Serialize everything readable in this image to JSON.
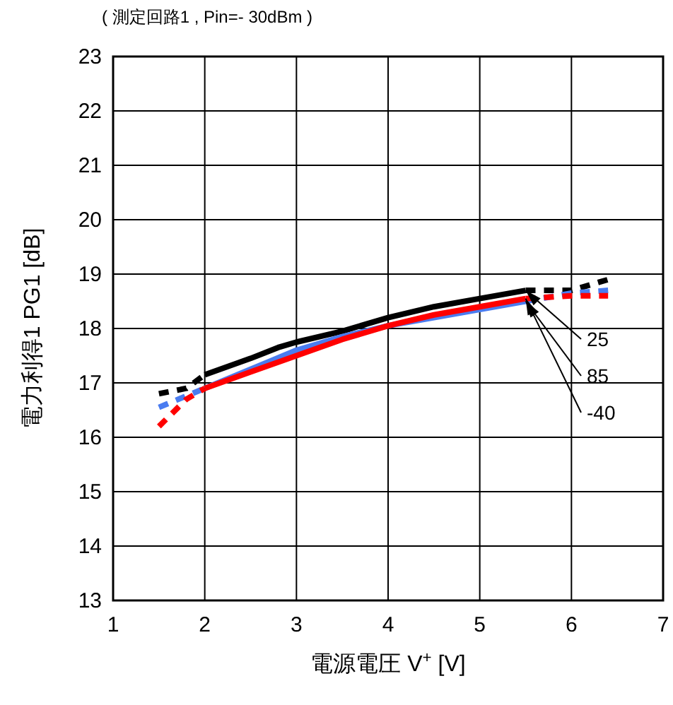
{
  "chart_data": {
    "type": "line",
    "title": "( 測定回路1 , Pin=- 30dBm )",
    "xlabel": "電源電圧 V$^{+}$ [V]",
    "ylabel": "電力利得1 PG1 [dB]",
    "xlim": [
      1,
      7
    ],
    "xticks": [
      1,
      2,
      3,
      4,
      5,
      6,
      7
    ],
    "ylim": [
      13,
      23
    ],
    "yticks": [
      13,
      14,
      15,
      16,
      17,
      18,
      19,
      20,
      21,
      22,
      23
    ],
    "grid": true,
    "legend": false,
    "marker": "none",
    "series": [
      {
        "name": "25",
        "color": "#000000",
        "line_style": "solid",
        "x": [
          2,
          2.5,
          2.8,
          3,
          3.5,
          4,
          4.5,
          5,
          5.5
        ],
        "values": [
          17.15,
          17.45,
          17.65,
          17.75,
          17.95,
          18.2,
          18.4,
          18.55,
          18.7
        ]
      },
      {
        "name": "85",
        "color": "#4a7cf0",
        "line_style": "solid",
        "x": [
          2,
          2.5,
          3,
          3.5,
          4,
          4.5,
          5,
          5.5
        ],
        "values": [
          16.9,
          17.25,
          17.6,
          17.85,
          18.05,
          18.2,
          18.35,
          18.5
        ]
      },
      {
        "name": "-40",
        "color": "#ff0000",
        "line_style": "solid",
        "x": [
          2,
          2.5,
          3,
          3.5,
          4,
          4.5,
          5,
          5.5
        ],
        "values": [
          16.9,
          17.2,
          17.5,
          17.8,
          18.05,
          18.25,
          18.4,
          18.55
        ]
      },
      {
        "color": "#000000",
        "line_style": "dashed",
        "x": [
          1.5,
          1.8,
          2
        ],
        "values": [
          16.8,
          16.9,
          17.15
        ]
      },
      {
        "color": "#4a7cf0",
        "line_style": "dashed",
        "x": [
          1.5,
          2
        ],
        "values": [
          16.55,
          16.9
        ]
      },
      {
        "color": "#ff0000",
        "line_style": "dashed",
        "x": [
          1.5,
          1.8,
          2
        ],
        "values": [
          16.2,
          16.7,
          16.9
        ]
      },
      {
        "color": "#000000",
        "line_style": "dashed",
        "x": [
          5.5,
          6,
          6.4
        ],
        "values": [
          18.7,
          18.7,
          18.9
        ]
      },
      {
        "color": "#4a7cf0",
        "line_style": "dashed",
        "x": [
          5.5,
          6,
          6.4
        ],
        "values": [
          18.5,
          18.65,
          18.7
        ]
      },
      {
        "color": "#ff0000",
        "line_style": "dashed",
        "x": [
          5.5,
          6,
          6.4
        ],
        "values": [
          18.55,
          18.6,
          18.6
        ]
      }
    ]
  }
}
